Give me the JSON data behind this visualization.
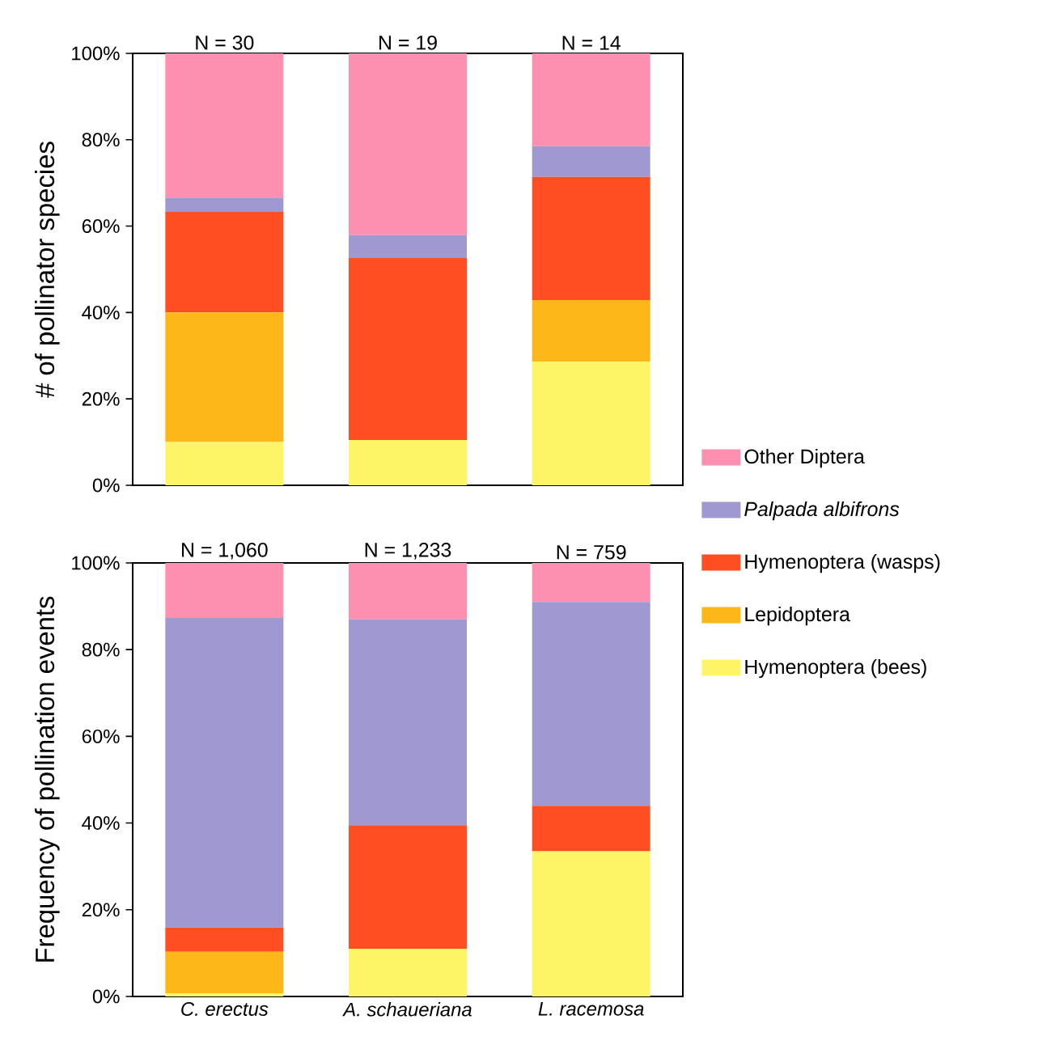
{
  "chart_data": [
    {
      "type": "bar",
      "stacked": true,
      "ylabel": "# of pollinator species",
      "categories": [
        "C. erectus",
        "A. schaueriana",
        "L. racemosa"
      ],
      "tick_labels": "y",
      "ylim": [
        0,
        100
      ],
      "yticks": [
        {
          "value": 0,
          "label": "0%"
        },
        {
          "value": 20,
          "label": "20%"
        },
        {
          "value": 40,
          "label": "40%"
        },
        {
          "value": 60,
          "label": "60%"
        },
        {
          "value": 80,
          "label": "80%"
        },
        {
          "value": 100,
          "label": "100%"
        }
      ],
      "legend": "right",
      "series": [
        {
          "name": "Hymenoptera (bees)",
          "color": "#fef566",
          "values": [
            10,
            10.5,
            28.6
          ]
        },
        {
          "name": "Lepidoptera",
          "color": "#feb718",
          "values": [
            30,
            0,
            14.3
          ]
        },
        {
          "name": "Hymenoptera (wasps)",
          "color": "#fe4e22",
          "values": [
            23.3,
            42.1,
            28.5
          ]
        },
        {
          "name": "*Palpada albifrons*",
          "color": "#a098d0",
          "values": [
            3.3,
            5.3,
            7.1
          ]
        },
        {
          "name": "Other Diptera",
          "color": "#fd8fb0",
          "values": [
            33.4,
            42.1,
            21.5
          ]
        }
      ],
      "annotations": [
        {
          "text": "N = 30",
          "x": "C. erectus",
          "y": 100
        },
        {
          "text": "N = 19",
          "x": "A. schaueriana",
          "y": 100
        },
        {
          "text": "N = 14",
          "x": "L. racemosa",
          "y": 100
        }
      ]
    },
    {
      "type": "bar",
      "stacked": true,
      "ylabel": "Frequency of pollination events",
      "categories": [
        "C. erectus",
        "A. schaueriana",
        "L. racemosa"
      ],
      "ylim": [
        0,
        100
      ],
      "yticks": [
        {
          "value": 0,
          "label": "0%"
        },
        {
          "value": 20,
          "label": "20%"
        },
        {
          "value": 40,
          "label": "40%"
        },
        {
          "value": 60,
          "label": "60%"
        },
        {
          "value": 80,
          "label": "80%"
        },
        {
          "value": 100,
          "label": "100%"
        }
      ],
      "series": [
        {
          "color": "#fef566",
          "values": [
            0.7,
            11,
            33.5
          ]
        },
        {
          "color": "#feb718",
          "values": [
            9.6,
            0,
            0
          ]
        },
        {
          "color": "#fe4e22",
          "values": [
            5.6,
            28.5,
            10.5
          ]
        },
        {
          "color": "#a098d0",
          "values": [
            71.4,
            47.5,
            47
          ]
        },
        {
          "color": "#fd8fb0",
          "values": [
            12.7,
            13,
            9
          ]
        }
      ],
      "annotations": [
        {
          "text": "N = 1,060",
          "x": "C. erectus",
          "y": 100
        },
        {
          "text": "N = 1,233",
          "x": "A. schaueriana",
          "y": 100
        },
        {
          "text": "N = 759",
          "x": "L. racemosa",
          "y": 100
        }
      ]
    }
  ]
}
